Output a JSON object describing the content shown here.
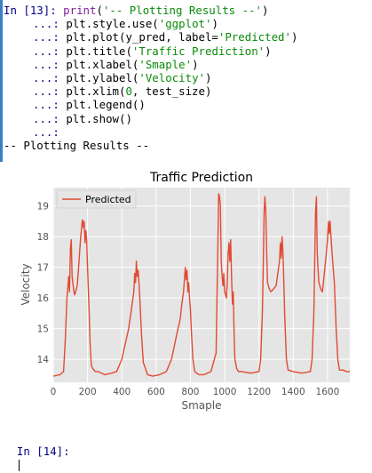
{
  "cell13": {
    "prompt": "In [13]:",
    "continuation": "...:",
    "lines": [
      {
        "pre": "",
        "fn": "print",
        "args": [
          {
            "t": "(",
            "c": ""
          },
          {
            "t": "'-- Plotting Results --'",
            "c": "str"
          },
          {
            "t": ")",
            "c": ""
          }
        ]
      },
      {
        "pre": "plt.style.use",
        "fn": "",
        "args": [
          {
            "t": "(",
            "c": ""
          },
          {
            "t": "'ggplot'",
            "c": "str"
          },
          {
            "t": ")",
            "c": ""
          }
        ]
      },
      {
        "pre": "plt.plot(y_pred, label=",
        "fn": "",
        "args": [
          {
            "t": "'Predicted'",
            "c": "str"
          },
          {
            "t": ")",
            "c": ""
          }
        ]
      },
      {
        "pre": "plt.title",
        "fn": "",
        "args": [
          {
            "t": "(",
            "c": ""
          },
          {
            "t": "'Traffic Prediction'",
            "c": "str"
          },
          {
            "t": ")",
            "c": ""
          }
        ]
      },
      {
        "pre": "plt.xlabel",
        "fn": "",
        "args": [
          {
            "t": "(",
            "c": ""
          },
          {
            "t": "'Smaple'",
            "c": "str"
          },
          {
            "t": ")",
            "c": ""
          }
        ]
      },
      {
        "pre": "plt.ylabel",
        "fn": "",
        "args": [
          {
            "t": "(",
            "c": ""
          },
          {
            "t": "'Velocity'",
            "c": "str"
          },
          {
            "t": ")",
            "c": ""
          }
        ]
      },
      {
        "pre": "plt.xlim(",
        "fn": "",
        "args": [
          {
            "t": "0",
            "c": "num"
          },
          {
            "t": ", test_size)",
            "c": ""
          }
        ]
      },
      {
        "pre": "plt.legend()",
        "fn": "",
        "args": []
      },
      {
        "pre": "plt.show()",
        "fn": "",
        "args": []
      },
      {
        "pre": "",
        "fn": "",
        "args": []
      }
    ],
    "output": "-- Plotting Results --"
  },
  "cell14": {
    "prompt": "In [14]:"
  },
  "colors": {
    "line": "#e24a33",
    "axes_bg": "#e5e5e5",
    "grid": "#ffffff",
    "prompt": "#000080",
    "string": "#0b8a0b",
    "keyword": "#7a1f9c"
  },
  "chart_data": {
    "type": "line",
    "title": "Traffic Prediction",
    "xlabel": "Smaple",
    "ylabel": "Velocity",
    "xlim": [
      0,
      1730
    ],
    "ylim": [
      13.25,
      19.6
    ],
    "xticks": [
      0,
      200,
      400,
      600,
      800,
      1000,
      1200,
      1400,
      1600
    ],
    "yticks": [
      14,
      15,
      16,
      17,
      18,
      19
    ],
    "legend": "top-left",
    "grid": true,
    "series": [
      {
        "name": "Predicted",
        "x": [
          0,
          40,
          60,
          70,
          80,
          90,
          95,
          100,
          105,
          110,
          118,
          125,
          140,
          150,
          160,
          170,
          175,
          180,
          185,
          190,
          195,
          200,
          205,
          210,
          215,
          222,
          230,
          245,
          260,
          300,
          340,
          370,
          400,
          420,
          440,
          450,
          460,
          470,
          475,
          480,
          485,
          490,
          495,
          500,
          505,
          515,
          525,
          550,
          580,
          620,
          660,
          690,
          720,
          740,
          750,
          760,
          765,
          770,
          775,
          780,
          785,
          790,
          795,
          800,
          805,
          815,
          825,
          850,
          880,
          920,
          950,
          955,
          960,
          965,
          970,
          975,
          980,
          985,
          990,
          995,
          1000,
          1010,
          1015,
          1020,
          1025,
          1030,
          1035,
          1040,
          1045,
          1050,
          1055,
          1060,
          1070,
          1080,
          1100,
          1150,
          1200,
          1210,
          1220,
          1225,
          1230,
          1235,
          1240,
          1245,
          1250,
          1260,
          1270,
          1300,
          1310,
          1320,
          1325,
          1330,
          1335,
          1340,
          1345,
          1350,
          1360,
          1370,
          1400,
          1450,
          1500,
          1510,
          1520,
          1525,
          1530,
          1535,
          1540,
          1545,
          1550,
          1560,
          1570,
          1580,
          1590,
          1600,
          1605,
          1610,
          1615,
          1620,
          1625,
          1630,
          1640,
          1650,
          1660,
          1670,
          1690,
          1710,
          1730
        ],
        "y": [
          13.45,
          13.5,
          13.6,
          14.6,
          16.0,
          16.7,
          16.2,
          17.6,
          17.9,
          16.7,
          16.3,
          16.1,
          16.4,
          17.2,
          18.0,
          18.55,
          18.3,
          18.5,
          17.8,
          18.2,
          17.9,
          17.0,
          16.2,
          15.5,
          14.5,
          13.8,
          13.7,
          13.6,
          13.6,
          13.5,
          13.55,
          13.6,
          14.0,
          14.5,
          15.0,
          15.4,
          15.8,
          16.2,
          16.8,
          16.5,
          17.2,
          16.7,
          16.9,
          16.5,
          16.0,
          14.8,
          13.9,
          13.5,
          13.45,
          13.5,
          13.6,
          14.0,
          14.8,
          15.3,
          15.8,
          16.2,
          16.6,
          17.0,
          16.6,
          16.9,
          16.2,
          16.5,
          16.0,
          15.6,
          15.0,
          14.0,
          13.6,
          13.5,
          13.5,
          13.6,
          14.2,
          16.0,
          17.5,
          19.4,
          19.3,
          19.0,
          17.2,
          16.7,
          16.4,
          16.8,
          16.2,
          16.0,
          16.5,
          17.4,
          17.8,
          17.2,
          17.9,
          16.7,
          15.8,
          16.2,
          14.8,
          14.0,
          13.7,
          13.6,
          13.6,
          13.55,
          13.6,
          14.0,
          15.5,
          17.0,
          18.8,
          19.3,
          18.8,
          17.5,
          16.5,
          16.3,
          16.2,
          16.4,
          16.8,
          17.2,
          17.8,
          17.3,
          18.0,
          17.5,
          16.5,
          15.5,
          14.0,
          13.65,
          13.6,
          13.55,
          13.6,
          14.0,
          15.5,
          17.0,
          18.8,
          19.3,
          17.5,
          16.9,
          16.5,
          16.3,
          16.2,
          16.7,
          17.3,
          17.9,
          18.5,
          18.1,
          18.5,
          18.0,
          17.6,
          17.2,
          16.5,
          15.0,
          14.0,
          13.65,
          13.65,
          13.6,
          13.6
        ]
      }
    ]
  }
}
